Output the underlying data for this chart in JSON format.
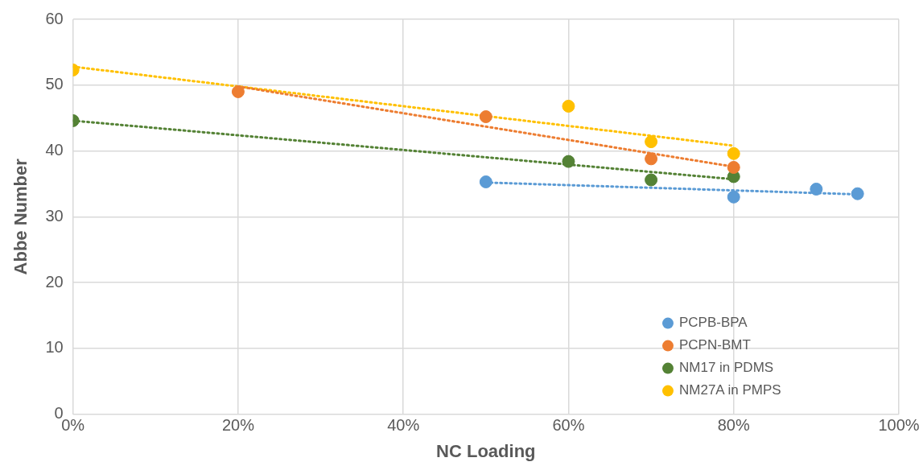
{
  "chart_data": {
    "type": "scatter",
    "xlabel": "NC Loading",
    "ylabel": "Abbe Number",
    "xlim": [
      0,
      100
    ],
    "xticks": [
      {
        "value": 0,
        "label": "0%"
      },
      {
        "value": 20,
        "label": "20%"
      },
      {
        "value": 40,
        "label": "40%"
      },
      {
        "value": 60,
        "label": "60%"
      },
      {
        "value": 80,
        "label": "80%"
      },
      {
        "value": 100,
        "label": "100%"
      }
    ],
    "ylim": [
      0,
      60
    ],
    "yticks": [
      0,
      10,
      20,
      30,
      40,
      50,
      60
    ],
    "grid": true,
    "legend": "bottom right",
    "marker": "circle",
    "series": [
      {
        "name": "PCPB-BPA",
        "color": "#5b9bd5",
        "x": [
          50,
          80,
          90,
          95
        ],
        "values": [
          35.3,
          33.0,
          34.2,
          33.5
        ]
      },
      {
        "name": "PCPN-BMT",
        "color": "#ed7d31",
        "x": [
          20,
          50,
          70,
          80
        ],
        "values": [
          49.0,
          45.2,
          38.8,
          37.5
        ]
      },
      {
        "name": "NM17 in PDMS",
        "color": "#548235",
        "x": [
          0,
          60,
          70,
          80
        ],
        "values": [
          44.6,
          38.4,
          35.6,
          36.1
        ]
      },
      {
        "name": "NM27A in PMPS",
        "color": "#ffc000",
        "x": [
          0,
          60,
          70,
          80
        ],
        "values": [
          52.3,
          46.8,
          41.4,
          39.6
        ]
      },
      {
        "type": "line",
        "line_style": "dotted",
        "marker": "none",
        "color": "#5b9bd5",
        "x": [
          50,
          95
        ],
        "values": [
          35.2,
          33.4
        ]
      },
      {
        "type": "line",
        "line_style": "dotted",
        "marker": "none",
        "color": "#ed7d31",
        "x": [
          20,
          80
        ],
        "values": [
          49.8,
          37.6
        ]
      },
      {
        "type": "line",
        "line_style": "dotted",
        "marker": "none",
        "color": "#548235",
        "x": [
          0,
          80
        ],
        "values": [
          44.6,
          35.7
        ]
      },
      {
        "type": "line",
        "line_style": "dotted",
        "marker": "none",
        "color": "#ffc000",
        "x": [
          0,
          80
        ],
        "values": [
          52.8,
          40.8
        ]
      }
    ]
  }
}
